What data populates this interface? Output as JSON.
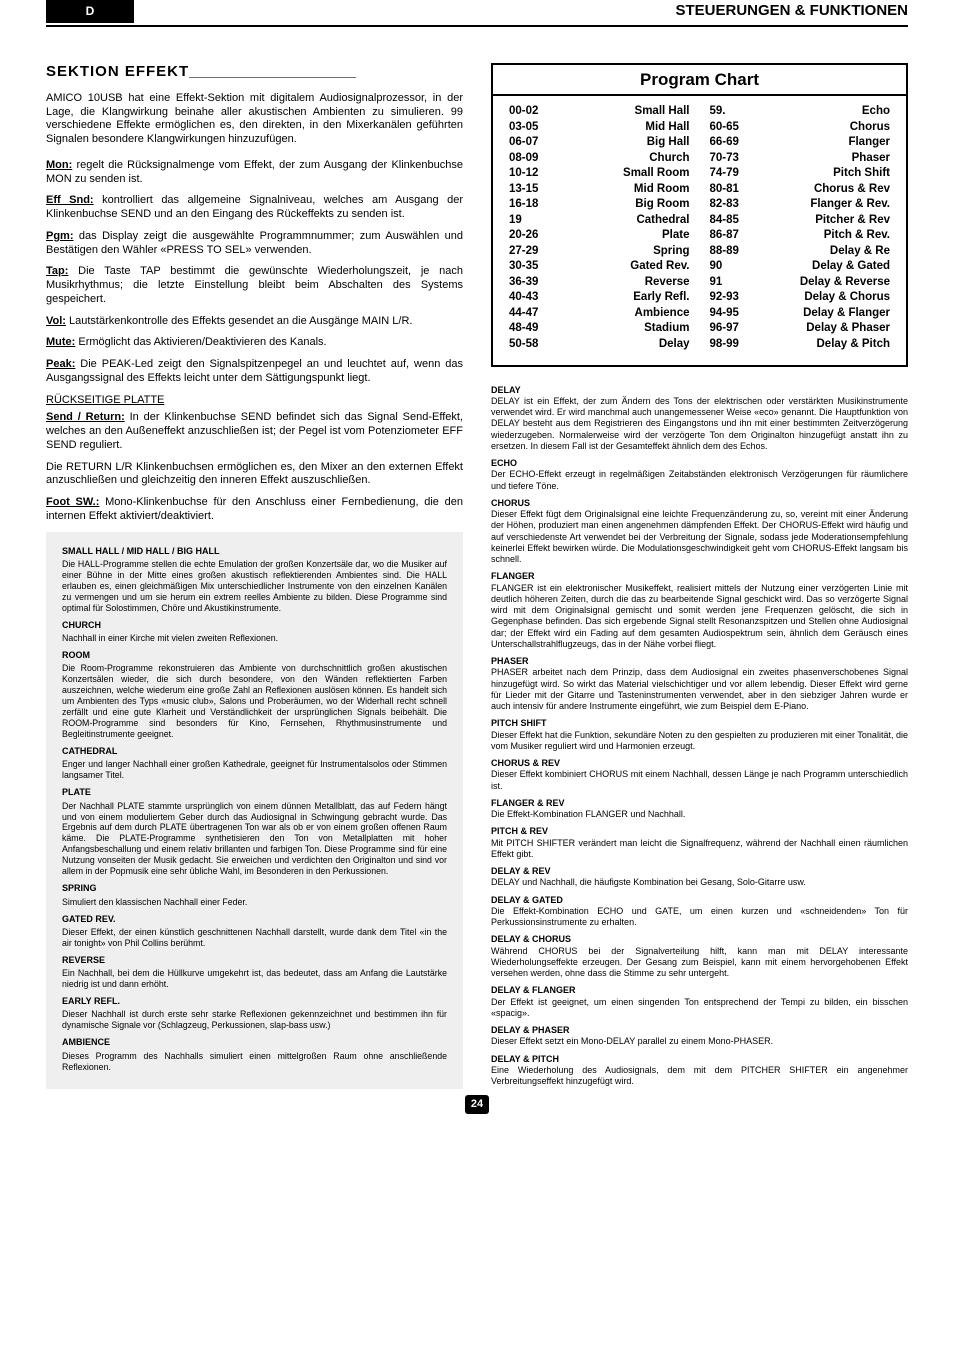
{
  "header": {
    "badge": "D",
    "title": "STEUERUNGEN & FUNKTIONEN"
  },
  "section_title": "SEKTION  EFFEKT",
  "section_fill": "____________________",
  "intro": "AMICO 10USB hat eine Effekt-Sektion mit digitalem Audiosignalprozessor, in der Lage, die Klangwirkung beinahe aller akustischen Ambienten zu simulieren. 99 verschiedene Effekte ermöglichen es, den direkten, in den Mixerkanälen geführten Signalen besondere Klangwirkungen hinzuzufügen.",
  "params": [
    {
      "label": "Mon:",
      "text": " regelt die Rücksignalmenge vom Effekt, der zum Ausgang der Klinkenbuchse MON zu senden ist."
    },
    {
      "label": "Eff Snd:",
      "text": " kontrolliert das allgemeine Signalniveau, welches am Ausgang der Klinkenbuchse SEND und an den Eingang des Rückeffekts zu senden ist."
    },
    {
      "label": "Pgm:",
      "text": " das Display zeigt die ausgewählte Programmnummer; zum Auswählen und Bestätigen den Wähler «PRESS TO SEL» verwenden."
    },
    {
      "label": "Tap:",
      "text": " Die Taste TAP bestimmt die gewünschte Wiederholungszeit, je nach Musikrhythmus; die letzte Einstellung bleibt beim Abschalten des Systems gespeichert."
    },
    {
      "label": "Vol:",
      "text": " Lautstärkenkontrolle des Effekts gesendet an die Ausgänge MAIN L/R."
    },
    {
      "label": "Mute:",
      "text": " Ermöglicht das Aktivieren/Deaktivieren des Kanals."
    },
    {
      "label": "Peak:",
      "text": " Die PEAK-Led zeigt den Signalspitzenpegel an und leuchtet auf, wenn das Ausgangssignal des Effekts leicht unter dem Sättigungspunkt liegt."
    }
  ],
  "backplate": "RÜCKSEITIGE PLATTE",
  "params2": [
    {
      "label": "Send / Return:",
      "text": " In der Klinkenbuchse SEND befindet sich das Signal Send-Effekt, welches an den Außeneffekt anzuschließen ist; der Pegel ist vom Potenziometer EFF SEND reguliert."
    }
  ],
  "returns_text": "Die RETURN L/R Klinkenbuchsen ermöglichen es, den Mixer an den externen Effekt anzuschließen und gleichzeitig den inneren Effekt auszuschließen.",
  "foot_sw": {
    "label": "Foot SW.:",
    "text": " Mono-Klinkenbuchse für den Anschluss einer Fernbedienung, die den internen Effekt aktiviert/deaktiviert."
  },
  "left_effects": [
    {
      "h": "SMALL HALL / MID HALL / BIG HALL",
      "t": "Die HALL-Programme stellen die echte Emulation der großen Konzertsäle dar, wo die Musiker auf einer Bühne in der Mitte eines großen akustisch reflektierenden Ambientes sind. Die HALL erlauben es, einen gleichmäßigen Mix unterschiedlicher Instrumente von den einzelnen Kanälen zu vermengen und um sie herum ein extrem reelles Ambiente zu bilden. Diese Programme sind optimal für Solostimmen, Chöre und Akustikinstrumente."
    },
    {
      "h": "CHURCH",
      "t": "Nachhall in einer Kirche mit vielen zweiten Reflexionen."
    },
    {
      "h": "ROOM",
      "t": "Die Room-Programme rekonstruieren das Ambiente von durchschnittlich großen akustischen Konzertsälen wieder, die sich durch besondere, von den Wänden reflektierten Farben auszeichnen, welche wiederum eine große Zahl an Reflexionen auslösen können. Es handelt sich um Ambienten des Typs «music club», Salons und Proberäumen, wo der Widerhall recht schnell zerfällt und eine gute Klarheit und Verständlichkeit der ursprünglichen Signals beibehält. Die ROOM-Programme sind besonders für Kino, Fernsehen, Rhythmusinstrumente und Begleitinstrumente geeignet."
    },
    {
      "h": "CATHEDRAL",
      "t": "Enger und langer Nachhall einer großen Kathedrale, geeignet für Instrumentalsolos oder Stimmen langsamer Titel."
    },
    {
      "h": "PLATE",
      "t": "Der Nachhall PLATE stammte ursprünglich von einem dünnen Metallblatt, das auf Federn hängt und von einem moduliertem Geber durch das Audiosignal in Schwingung gebracht wurde. Das Ergebnis auf dem durch PLATE übertragenen Ton war als ob er von einem großen offenen Raum käme. Die PLATE-Programme synthetisieren den Ton von Metallplatten mit hoher Anfangsbeschallung und einem relativ brillanten und farbigen Ton. Diese Programme sind für eine Nutzung vonseiten der Musik gedacht. Sie erweichen und verdichten den Originalton und sind vor allem in der Popmusik eine sehr übliche Wahl, im Besonderen in den Perkussionen."
    },
    {
      "h": "SPRING",
      "t": "Simuliert den klassischen Nachhall einer Feder."
    },
    {
      "h": "GATED REV.",
      "t": "Dieser Effekt, der einen künstlich geschnittenen Nachhall darstellt, wurde dank dem Titel «in the air tonight» von Phil Collins berühmt."
    },
    {
      "h": "REVERSE",
      "t": "Ein Nachhall, bei dem die Hüllkurve umgekehrt ist, das bedeutet, dass am Anfang die Lautstärke niedrig ist und dann erhöht."
    },
    {
      "h": "EARLY REFL.",
      "t": "Dieser Nachhall ist durch erste sehr starke Reflexionen gekennzeichnet und bestimmen ihn für dynamische Signale vor (Schlagzeug, Perkussionen, slap-bass usw.)"
    },
    {
      "h": "AMBIENCE",
      "t": "Dieses Programm des Nachhalls simuliert einen mittelgroßen Raum ohne anschließende Reflexionen."
    }
  ],
  "program_chart": {
    "title": "Program Chart",
    "left": [
      {
        "code": "00-02",
        "name": "Small Hall"
      },
      {
        "code": "03-05",
        "name": "Mid Hall"
      },
      {
        "code": "06-07",
        "name": "Big Hall"
      },
      {
        "code": "08-09",
        "name": "Church"
      },
      {
        "code": "10-12",
        "name": "Small Room"
      },
      {
        "code": "13-15",
        "name": "Mid Room"
      },
      {
        "code": "16-18",
        "name": "Big Room"
      },
      {
        "code": "19",
        "name": "Cathedral"
      },
      {
        "code": "20-26",
        "name": "Plate"
      },
      {
        "code": "27-29",
        "name": "Spring"
      },
      {
        "code": "30-35",
        "name": "Gated Rev."
      },
      {
        "code": "36-39",
        "name": "Reverse"
      },
      {
        "code": "40-43",
        "name": "Early Refl."
      },
      {
        "code": "44-47",
        "name": "Ambience"
      },
      {
        "code": "48-49",
        "name": "Stadium"
      },
      {
        "code": "50-58",
        "name": "Delay"
      }
    ],
    "right": [
      {
        "code": "59.",
        "name": "Echo"
      },
      {
        "code": "60-65",
        "name": "Chorus"
      },
      {
        "code": "66-69",
        "name": "Flanger"
      },
      {
        "code": "70-73",
        "name": "Phaser"
      },
      {
        "code": "74-79",
        "name": "Pitch Shift"
      },
      {
        "code": "80-81",
        "name": "Chorus & Rev"
      },
      {
        "code": "82-83",
        "name": "Flanger & Rev."
      },
      {
        "code": "84-85",
        "name": "Pitcher & Rev"
      },
      {
        "code": "86-87",
        "name": "Pitch & Rev."
      },
      {
        "code": "88-89",
        "name": "Delay & Re"
      },
      {
        "code": "90",
        "name": "Delay & Gated"
      },
      {
        "code": "91",
        "name": "Delay & Reverse"
      },
      {
        "code": "92-93",
        "name": "Delay & Chorus"
      },
      {
        "code": "94-95",
        "name": "Delay & Flanger"
      },
      {
        "code": "96-97",
        "name": "Delay & Phaser"
      },
      {
        "code": "98-99",
        "name": "Delay & Pitch"
      }
    ]
  },
  "right_effects": [
    {
      "h": "DELAY",
      "t": "DELAY ist ein Effekt, der zum Ändern des Tons der elektrischen oder verstärkten Musikinstrumente verwendet wird. Er wird manchmal auch unangemessener Weise «eco» genannt. Die Hauptfunktion von DELAY besteht aus dem Registrieren des Eingangstons und ihn mit einer bestimmten Zeitverzögerung wiederzugeben. Normalerweise wird der verzögerte Ton dem Originalton hinzugefügt anstatt ihn zu ersetzen. In diesem Fall ist der Gesamteffekt ähnlich dem des Echos."
    },
    {
      "h": "ECHO",
      "t": "Der ECHO-Effekt erzeugt in regelmäßigen Zeitabständen elektronisch Verzögerungen für räumlichere und tiefere Töne."
    },
    {
      "h": "CHORUS",
      "t": "Dieser Effekt fügt dem Originalsignal eine leichte Frequenzänderung zu, so, vereint mit einer Änderung der Höhen, produziert man einen angenehmen dämpfenden Effekt. Der CHORUS-Effekt wird häufig und auf verschiedenste Art verwendet bei der Verbreitung der Signale, sodass jede Moderationsempfehlung keinerlei Effekt bewirken würde. Die Modulationsgeschwindigkeit geht vom CHORUS-Effekt langsam bis schnell."
    },
    {
      "h": "FLANGER",
      "t": "FLANGER ist ein elektronischer Musikeffekt, realisiert mittels der Nutzung einer verzögerten Linie mit deutlich höheren Zeiten, durch die das zu bearbeitende Signal geschickt wird. Das so verzögerte Signal wird mit dem Originalsignal gemischt und somit werden jene Frequenzen gelöscht, die sich in Gegenphase befinden. Das sich ergebende Signal stellt Resonanzspitzen und Stellen ohne Audiosignal dar; der Effekt wird ein Fading auf dem gesamten Audiospektrum sein, ähnlich dem Geräusch eines Unterschallstrahlflugzeugs, das in der Nähe vorbei fliegt."
    },
    {
      "h": "PHASER",
      "t": "PHASER arbeitet nach dem Prinzip, dass dem Audiosignal ein zweites phasenverschobenes Signal hinzugefügt wird. So wirkt das Material vielschichtiger und vor allem lebendig. Dieser Effekt wird gerne für Lieder mit der Gitarre und Tasteninstrumenten verwendet, aber in den siebziger Jahren wurde er auch intensiv für andere Instrumente eingeführt, wie zum Beispiel dem E-Piano."
    },
    {
      "h": "PITCH SHIFT",
      "t": "Dieser Effekt hat die Funktion, sekundäre Noten zu den gespielten zu produzieren mit einer Tonalität, die vom Musiker reguliert wird und Harmonien erzeugt."
    },
    {
      "h": "CHORUS & REV",
      "t": "Dieser Effekt kombiniert CHORUS mit einem Nachhall, dessen Länge je nach Programm unterschiedlich ist."
    },
    {
      "h": "FLANGER & REV",
      "t": "Die Effekt-Kombination FLANGER und Nachhall."
    },
    {
      "h": "PITCH & REV",
      "t": "Mit PITCH SHIFTER verändert man leicht die Signalfrequenz, während der Nachhall einen räumlichen Effekt gibt."
    },
    {
      "h": "DELAY & REV",
      "t": "DELAY und Nachhall, die häufigste Kombination bei Gesang, Solo-Gitarre usw."
    },
    {
      "h": "DELAY & GATED",
      "t": "Die Effekt-Kombination ECHO und GATE, um einen kurzen und «schneidenden» Ton für Perkussionsinstrumente zu erhalten."
    },
    {
      "h": "DELAY & CHORUS",
      "t": "Während CHORUS bei der Signalverteilung hilft, kann man mit DELAY interessante Wiederholungseffekte erzeugen. Der Gesang zum Beispiel, kann mit einem hervorgehobenen Effekt versehen werden, ohne dass die Stimme zu sehr untergeht."
    },
    {
      "h": "DELAY & FLANGER",
      "t": "Der Effekt ist geeignet, um einen singenden Ton entsprechend der Tempi zu bilden, ein bisschen «spacig»."
    },
    {
      "h": "DELAY & PHASER",
      "t": "Dieser Effekt setzt ein Mono-DELAY parallel zu einem Mono-PHASER."
    },
    {
      "h": "DELAY & PITCH",
      "t": "Eine Wiederholung des Audiosignals, dem mit dem PITCHER SHIFTER ein angenehmer Verbreitungseffekt hinzugefügt wird."
    }
  ],
  "page_number": "24"
}
